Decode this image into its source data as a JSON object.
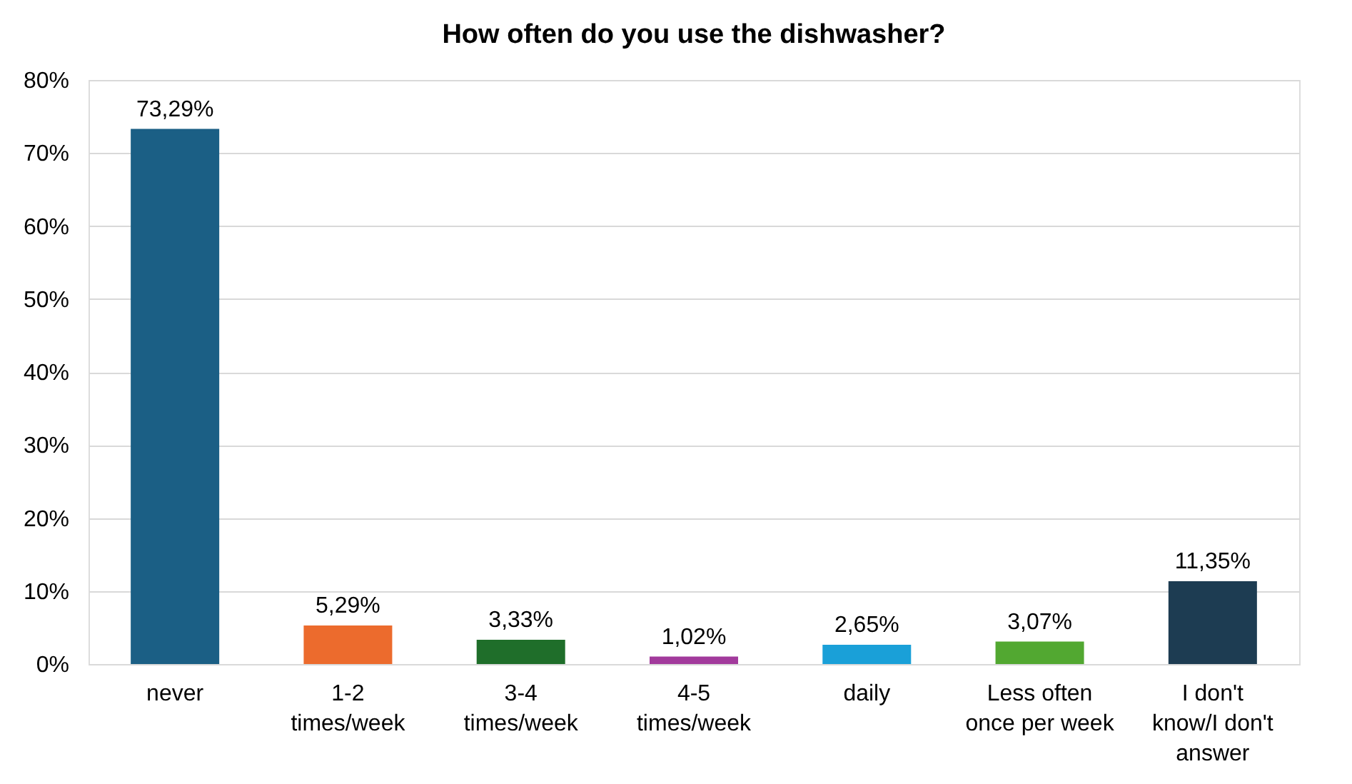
{
  "chart_data": {
    "type": "bar",
    "title": "How often do you use the dishwasher?",
    "categories": [
      "never",
      "1-2 times/week",
      "3-4 times/week",
      "4-5 times/week",
      "daily",
      "Less often once per week",
      "I don't know/I don't answer"
    ],
    "values": [
      73.29,
      5.29,
      3.33,
      1.02,
      2.65,
      3.07,
      11.35
    ],
    "colors": [
      "#1b5f85",
      "#ec6b2d",
      "#1f6e2a",
      "#a23a9c",
      "#1aa0d8",
      "#52a831",
      "#1d3c52"
    ],
    "value_labels": [
      "73,29%",
      "5,29%",
      "3,33%",
      "1,02%",
      "2,65%",
      "3,07%",
      "11,35%"
    ],
    "ylim": [
      0,
      80
    ],
    "yticks": [
      {
        "value": 0,
        "label": "0%"
      },
      {
        "value": 10,
        "label": "10%"
      },
      {
        "value": 20,
        "label": "20%"
      },
      {
        "value": 30,
        "label": "30%"
      },
      {
        "value": 40,
        "label": "40%"
      },
      {
        "value": 50,
        "label": "50%"
      },
      {
        "value": 60,
        "label": "60%"
      },
      {
        "value": 70,
        "label": "70%"
      },
      {
        "value": 80,
        "label": "80%"
      }
    ],
    "grid": "y"
  }
}
